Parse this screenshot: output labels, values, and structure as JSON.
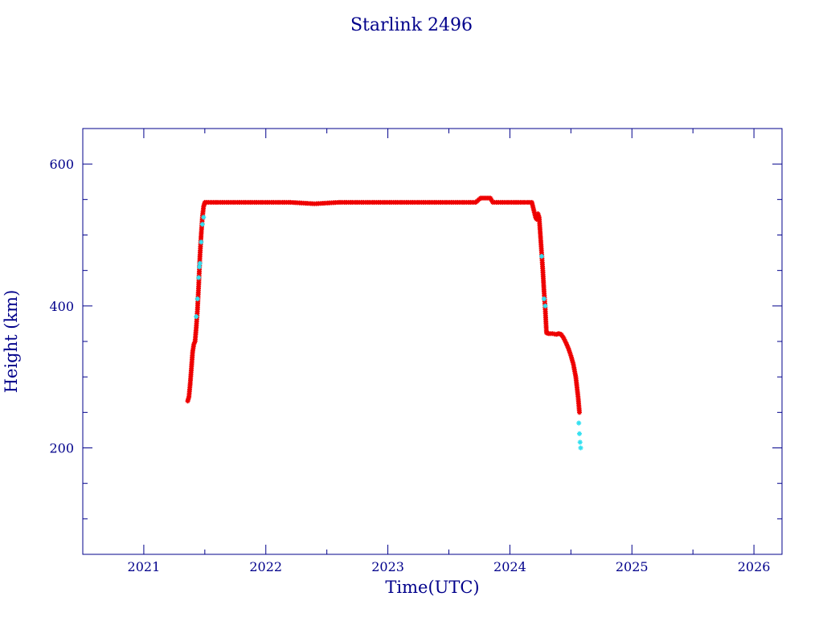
{
  "chart_data": {
    "type": "scatter",
    "title": "Starlink 2496",
    "xlabel": "Time(UTC)",
    "ylabel": "Height (km)",
    "xlim": [
      2020.5,
      2026.23
    ],
    "ylim": [
      50,
      650
    ],
    "x_ticks": [
      "2021",
      "2022",
      "2023",
      "2024",
      "2025",
      "2026"
    ],
    "y_ticks": [
      "200",
      "400",
      "600"
    ],
    "grid": false,
    "legend": "none",
    "axis_color": "#00008b",
    "series": [
      {
        "color": "#ee0000",
        "marker": "asterisk",
        "points": [
          [
            2021.36,
            266
          ],
          [
            2021.37,
            272
          ],
          [
            2021.38,
            290
          ],
          [
            2021.39,
            312
          ],
          [
            2021.4,
            335
          ],
          [
            2021.41,
            346
          ],
          [
            2021.42,
            350
          ],
          [
            2021.43,
            370
          ],
          [
            2021.44,
            395
          ],
          [
            2021.45,
            430
          ],
          [
            2021.46,
            470
          ],
          [
            2021.47,
            500
          ],
          [
            2021.48,
            525
          ],
          [
            2021.49,
            540
          ],
          [
            2021.5,
            546
          ],
          [
            2021.6,
            546
          ],
          [
            2021.8,
            546
          ],
          [
            2022.0,
            546
          ],
          [
            2022.2,
            546
          ],
          [
            2022.4,
            544
          ],
          [
            2022.6,
            546
          ],
          [
            2022.8,
            546
          ],
          [
            2023.0,
            546
          ],
          [
            2023.2,
            546
          ],
          [
            2023.4,
            546
          ],
          [
            2023.6,
            546
          ],
          [
            2023.72,
            546
          ],
          [
            2023.76,
            552
          ],
          [
            2023.8,
            552
          ],
          [
            2023.84,
            552
          ],
          [
            2023.86,
            546
          ],
          [
            2024.0,
            546
          ],
          [
            2024.1,
            546
          ],
          [
            2024.18,
            546
          ],
          [
            2024.2,
            532
          ],
          [
            2024.21,
            525
          ],
          [
            2024.22,
            522
          ],
          [
            2024.23,
            530
          ],
          [
            2024.24,
            525
          ],
          [
            2024.25,
            500
          ],
          [
            2024.26,
            475
          ],
          [
            2024.27,
            450
          ],
          [
            2024.28,
            420
          ],
          [
            2024.29,
            395
          ],
          [
            2024.3,
            362
          ],
          [
            2024.32,
            361
          ],
          [
            2024.35,
            361
          ],
          [
            2024.38,
            360
          ],
          [
            2024.4,
            361
          ],
          [
            2024.42,
            360
          ],
          [
            2024.44,
            355
          ],
          [
            2024.46,
            348
          ],
          [
            2024.48,
            340
          ],
          [
            2024.5,
            330
          ],
          [
            2024.52,
            318
          ],
          [
            2024.54,
            300
          ],
          [
            2024.55,
            285
          ],
          [
            2024.56,
            270
          ],
          [
            2024.57,
            250
          ]
        ]
      },
      {
        "color": "#33e0f0",
        "marker": "asterisk",
        "points": [
          [
            2021.43,
            385
          ],
          [
            2021.44,
            410
          ],
          [
            2021.45,
            440
          ],
          [
            2021.455,
            455
          ],
          [
            2021.46,
            460
          ],
          [
            2021.47,
            490
          ],
          [
            2021.48,
            515
          ],
          [
            2021.49,
            525
          ],
          [
            2024.26,
            470
          ],
          [
            2024.28,
            410
          ],
          [
            2024.29,
            400
          ],
          [
            2024.565,
            235
          ],
          [
            2024.57,
            220
          ],
          [
            2024.575,
            208
          ],
          [
            2024.58,
            200
          ]
        ]
      }
    ]
  }
}
